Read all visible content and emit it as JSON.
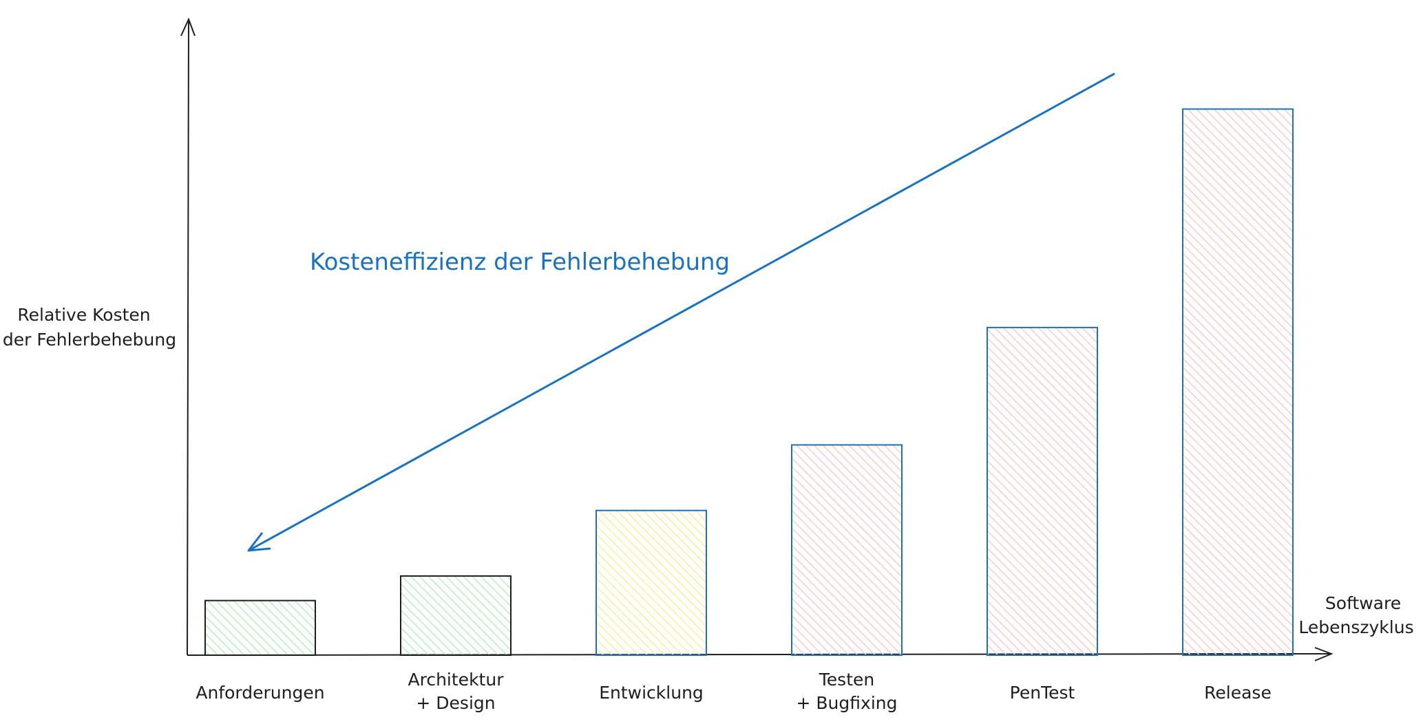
{
  "chart_data": {
    "type": "bar",
    "title": "",
    "ylabel_lines": [
      "Relative Kosten",
      "der Fehlerbehebung"
    ],
    "xlabel_lines": [
      "Software",
      "Lebenszyklus"
    ],
    "categories": [
      [
        "Anforderungen"
      ],
      [
        "Architektur",
        "+ Design"
      ],
      [
        "Entwicklung"
      ],
      [
        "Testen",
        "+ Bugfixing"
      ],
      [
        "PenTest"
      ],
      [
        "Release"
      ]
    ],
    "values": [
      1,
      1.45,
      2.65,
      3.85,
      6.0,
      10.0
    ],
    "ylim": [
      0,
      10.8
    ],
    "grid": false,
    "bar_styles": [
      {
        "fill": "#b2f2bb",
        "stroke": "#1e1e1e"
      },
      {
        "fill": "#b2f2bb",
        "stroke": "#1e1e1e"
      },
      {
        "fill": "#ffec99",
        "stroke": "#1971c2"
      },
      {
        "fill": "#ffc9c9",
        "stroke": "#1971c2"
      },
      {
        "fill": "#ffc9c9",
        "stroke": "#1971c2"
      },
      {
        "fill": "#ffc9c9",
        "stroke": "#1971c2"
      }
    ],
    "annotation": {
      "text": "Kosteneffizienz der Fehlerbehebung",
      "color": "#1971c2",
      "arrow_direction": "from top-right down to bottom-left"
    }
  }
}
